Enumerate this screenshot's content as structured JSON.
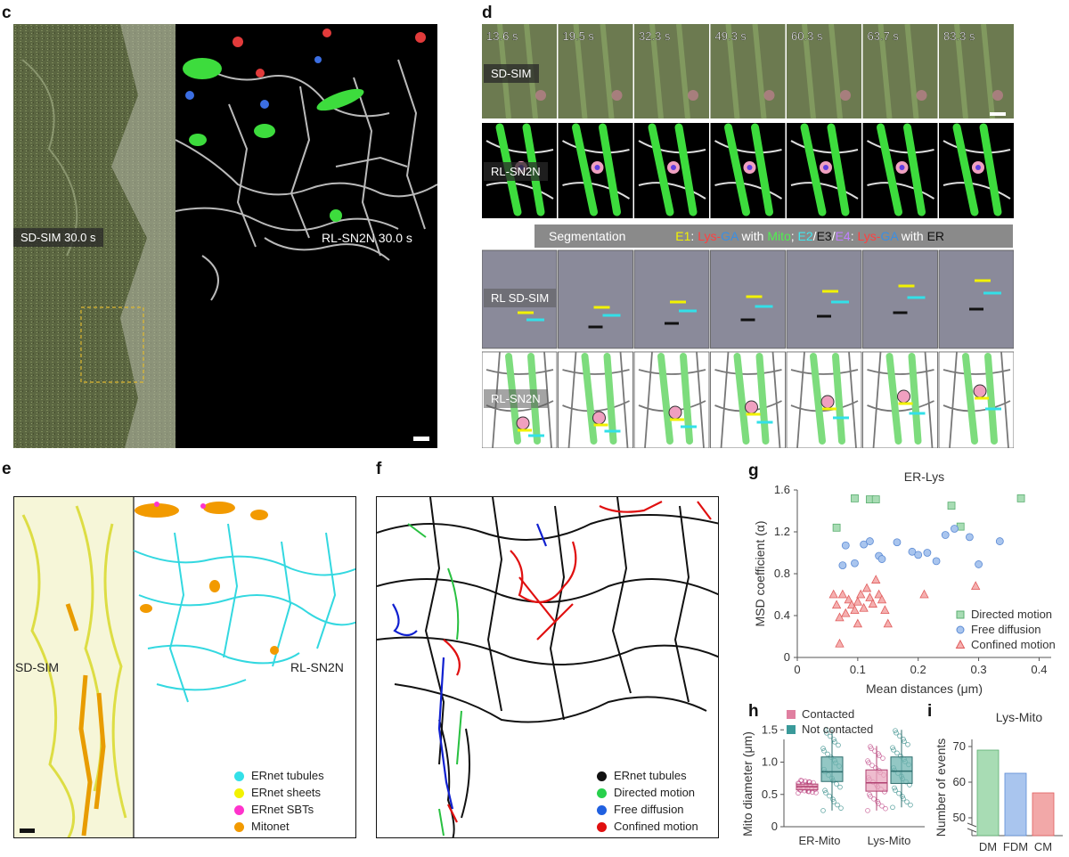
{
  "panel_letters": {
    "c": "c",
    "d": "d",
    "e": "e",
    "f": "f",
    "g": "g",
    "h": "h",
    "i": "i"
  },
  "colors": {
    "er_gray": "#d8d8d8",
    "mito_green": "#3ddc3d",
    "lys_red": "#e23b3b",
    "ga_blue": "#3b6ee2",
    "tubules_cyan": "#33e0e8",
    "sheets_yellow": "#f2f200",
    "sbt_magenta": "#ff33cc",
    "mitonet_orange": "#f29a00",
    "directed_green": "#8fd4a0",
    "free_blue": "#8ab0e8",
    "confined_red": "#f08080",
    "contacted_pink": "#e07fa0",
    "not_contacted_teal": "#3a9a9a",
    "dm_green": "#a8dcb4",
    "fdm_blue": "#a9c5ee",
    "cm_red": "#f2a8a8"
  },
  "panel_c": {
    "left_label": "SD-SIM 30.0 s",
    "right_label": "RL-SN2N 30.0 s"
  },
  "panel_d": {
    "times": [
      "13.6 s",
      "19.5 s",
      "32.3 s",
      "49.3 s",
      "60.3 s",
      "63.7 s",
      "83.3 s"
    ],
    "row_labels": {
      "sdsim": "SD-SIM",
      "rlsn2n": "RL-SN2N",
      "rlsdsim": "RL SD-SIM",
      "rlsn2n_b": "RL-SN2N"
    },
    "seg_bar": {
      "prefix": "Segmentation",
      "e1": "E1",
      "lys1": "Lys",
      "dash1": "-",
      "ga1": "GA",
      "with1": " with ",
      "mito": "Mito",
      "semi": "; ",
      "e2": "E2",
      "slash1": "/",
      "e3": "E3",
      "slash2": "/",
      "e4": "E4",
      "colon": ": ",
      "lys2": "Lys",
      "dash2": "-",
      "ga2": "GA",
      "with2": " with ",
      "er": "ER"
    }
  },
  "panel_e": {
    "left_label": "SD-SIM",
    "right_label": "RL-SN2N",
    "legend": [
      "ERnet tubules",
      "ERnet sheets",
      "ERnet SBTs",
      "Mitonet"
    ]
  },
  "panel_f": {
    "legend": [
      "ERnet tubules",
      "Directed motion",
      "Free diffusion",
      "Confined motion"
    ]
  },
  "chart_data": [
    {
      "type": "scatter",
      "title": "ER-Lys",
      "xlabel": "Mean distances (μm)",
      "ylabel": "MSD coefficient (α)",
      "xlim": [
        0,
        0.42
      ],
      "ylim": [
        0,
        1.6
      ],
      "xticks": [
        "0",
        "0.1",
        "0.2",
        "0.3",
        "0.4"
      ],
      "yticks": [
        "0",
        "0.4",
        "0.8",
        "1.2",
        "1.6"
      ],
      "legend_position": "bottom-right",
      "series": [
        {
          "name": "Directed motion",
          "marker": "square",
          "points": [
            [
              0.065,
              1.24
            ],
            [
              0.095,
              1.52
            ],
            [
              0.12,
              1.51
            ],
            [
              0.13,
              1.51
            ],
            [
              0.255,
              1.45
            ],
            [
              0.27,
              1.25
            ],
            [
              0.37,
              1.52
            ]
          ]
        },
        {
          "name": "Free diffusion",
          "marker": "circle",
          "points": [
            [
              0.075,
              0.88
            ],
            [
              0.08,
              1.07
            ],
            [
              0.095,
              0.9
            ],
            [
              0.11,
              1.08
            ],
            [
              0.12,
              1.11
            ],
            [
              0.135,
              0.97
            ],
            [
              0.14,
              0.94
            ],
            [
              0.165,
              1.1
            ],
            [
              0.19,
              1.01
            ],
            [
              0.2,
              0.98
            ],
            [
              0.215,
              1.0
            ],
            [
              0.23,
              0.92
            ],
            [
              0.245,
              1.17
            ],
            [
              0.26,
              1.23
            ],
            [
              0.285,
              1.15
            ],
            [
              0.3,
              0.89
            ],
            [
              0.335,
              1.11
            ]
          ]
        },
        {
          "name": "Confined motion",
          "marker": "triangle",
          "points": [
            [
              0.06,
              0.6
            ],
            [
              0.065,
              0.5
            ],
            [
              0.07,
              0.13
            ],
            [
              0.07,
              0.38
            ],
            [
              0.075,
              0.6
            ],
            [
              0.08,
              0.42
            ],
            [
              0.085,
              0.55
            ],
            [
              0.09,
              0.5
            ],
            [
              0.095,
              0.45
            ],
            [
              0.1,
              0.53
            ],
            [
              0.1,
              0.32
            ],
            [
              0.105,
              0.6
            ],
            [
              0.11,
              0.47
            ],
            [
              0.115,
              0.66
            ],
            [
              0.12,
              0.57
            ],
            [
              0.125,
              0.51
            ],
            [
              0.13,
              0.74
            ],
            [
              0.135,
              0.6
            ],
            [
              0.14,
              0.55
            ],
            [
              0.145,
              0.45
            ],
            [
              0.15,
              0.32
            ],
            [
              0.21,
              0.6
            ],
            [
              0.295,
              0.68
            ]
          ]
        }
      ]
    },
    {
      "type": "box",
      "ylabel": "Mito diameter (μm)",
      "ylim": [
        0,
        1.6
      ],
      "yticks": [
        "0",
        "0.5",
        "1.0",
        "1.5"
      ],
      "categories": [
        "ER-Mito",
        "Lys-Mito"
      ],
      "legend_position": "top-left",
      "series": [
        {
          "name": "Contacted",
          "boxes": [
            {
              "q1": 0.57,
              "median": 0.62,
              "q3": 0.66,
              "whisker_lo": 0.52,
              "whisker_hi": 0.72
            },
            {
              "q1": 0.55,
              "median": 0.68,
              "q3": 0.88,
              "whisker_lo": 0.25,
              "whisker_hi": 1.25
            }
          ]
        },
        {
          "name": "Not contacted",
          "boxes": [
            {
              "q1": 0.7,
              "median": 0.85,
              "q3": 1.08,
              "whisker_lo": 0.25,
              "whisker_hi": 1.5
            },
            {
              "q1": 0.67,
              "median": 0.86,
              "q3": 1.08,
              "whisker_lo": 0.3,
              "whisker_hi": 1.5
            }
          ]
        }
      ]
    },
    {
      "type": "bar",
      "title": "Lys-Mito",
      "ylabel": "Number of events",
      "categories": [
        "DM",
        "FDM",
        "CM"
      ],
      "values": [
        69,
        62.5,
        57
      ],
      "ylim": [
        45,
        72
      ],
      "yticks": [
        "50",
        "60",
        "70"
      ],
      "axis_break": true
    }
  ]
}
